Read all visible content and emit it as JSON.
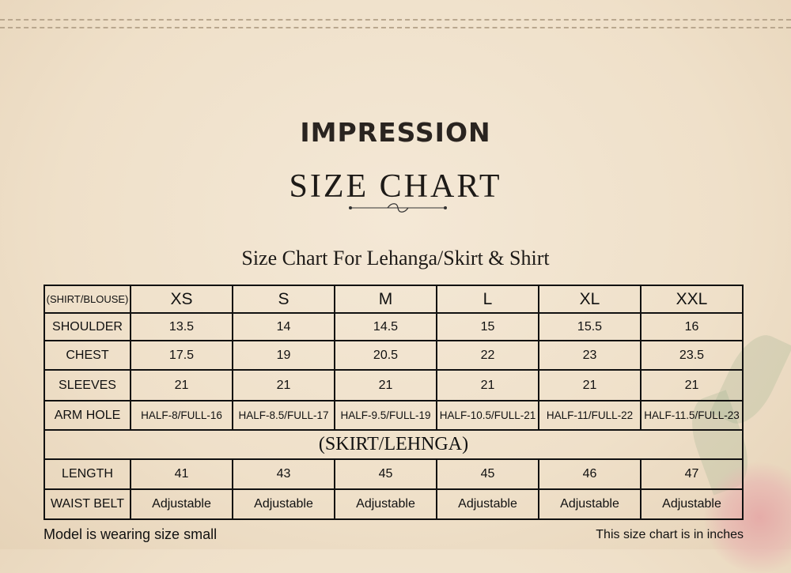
{
  "brand": "IMPRESSION",
  "title": "SIZE CHART",
  "subtitle": "Size Chart For Lehanga/Skirt & Shirt",
  "table": {
    "corner": "(SHIRT/BLOUSE)",
    "sizes": [
      "XS",
      "S",
      "M",
      "L",
      "XL",
      "XXL"
    ],
    "rows": [
      {
        "label": "SHOULDER",
        "values": [
          "13.5",
          "14",
          "14.5",
          "15",
          "15.5",
          "16"
        ]
      },
      {
        "label": "CHEST",
        "values": [
          "17.5",
          "19",
          "20.5",
          "22",
          "23",
          "23.5"
        ]
      },
      {
        "label": "SLEEVES",
        "values": [
          "21",
          "21",
          "21",
          "21",
          "21",
          "21"
        ]
      },
      {
        "label": "ARM HOLE",
        "values": [
          "HALF-8/FULL-16",
          "HALF-8.5/FULL-17",
          "HALF-9.5/FULL-19",
          "HALF-10.5/FULL-21",
          "HALF-11/FULL-22",
          "HALF-11.5/FULL-23"
        ]
      }
    ],
    "section": "(SKIRT/LEHNGA)",
    "skirt_rows": [
      {
        "label": "LENGTH",
        "values": [
          "41",
          "43",
          "45",
          "45",
          "46",
          "47"
        ]
      },
      {
        "label": "WAIST BELT",
        "values": [
          "Adjustable",
          "Adjustable",
          "Adjustable",
          "Adjustable",
          "Adjustable",
          "Adjustable"
        ]
      }
    ]
  },
  "footer": {
    "left": "Model is wearing size small",
    "right": "This size chart is in inches"
  }
}
